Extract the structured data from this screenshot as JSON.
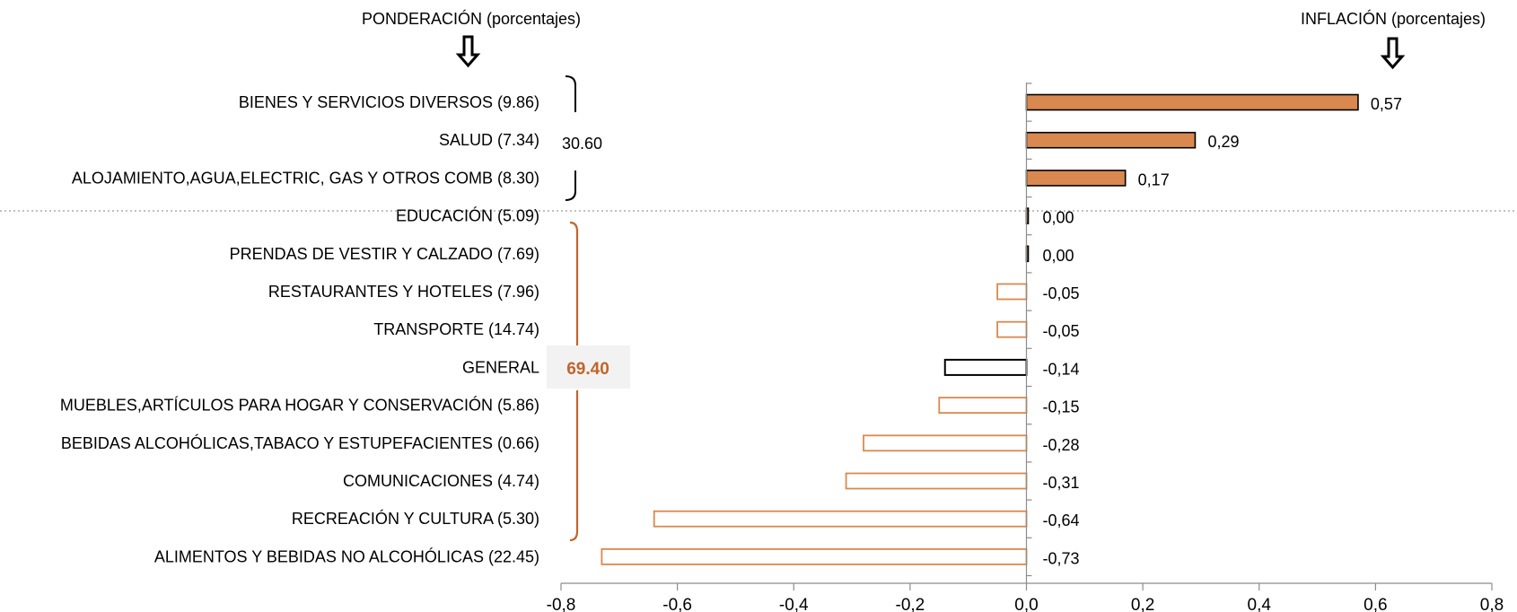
{
  "chart_data": {
    "type": "bar",
    "orientation": "horizontal",
    "header_left": "PONDERACIÓN (porcentajes)",
    "header_right": "INFLACIÓN (porcentajes)",
    "group_top_total": "30.60",
    "group_bottom_total": "69.40",
    "xlim": [
      -0.8,
      0.8
    ],
    "x_ticks": [
      "-0,8",
      "-0,6",
      "-0,4",
      "-0,2",
      "0,0",
      "0,2",
      "0,4",
      "0,6",
      "0,8"
    ],
    "colors": {
      "filled": "#d9894f",
      "outline_orange": "#d9894f",
      "general": "#000000"
    },
    "categories": [
      "BIENES Y SERVICIOS DIVERSOS (9.86)",
      "SALUD (7.34)",
      "ALOJAMIENTO,AGUA,ELECTRIC, GAS Y OTROS COMB (8.30)",
      "EDUCACIÓN (5.09)",
      "PRENDAS DE VESTIR Y CALZADO (7.69)",
      "RESTAURANTES Y HOTELES (7.96)",
      "TRANSPORTE (14.74)",
      "GENERAL",
      "MUEBLES,ARTÍCULOS PARA HOGAR Y CONSERVACIÓN (5.86)",
      "BEBIDAS ALCOHÓLICAS,TABACO Y ESTUPEFACIENTES (0.66)",
      "COMUNICACIONES (4.74)",
      "RECREACIÓN Y CULTURA (5.30)",
      "ALIMENTOS Y BEBIDAS NO ALCOHÓLICAS (22.45)"
    ],
    "values": [
      0.57,
      0.29,
      0.17,
      0.0,
      0.0,
      -0.05,
      -0.05,
      -0.14,
      -0.15,
      -0.28,
      -0.31,
      -0.64,
      -0.73
    ],
    "value_labels": [
      "0,57",
      "0,29",
      "0,17",
      "0,00",
      "0,00",
      "-0,05",
      "-0,05",
      "-0,14",
      "-0,15",
      "-0,28",
      "-0,31",
      "-0,64",
      "-0,73"
    ],
    "styles": [
      "filled",
      "filled",
      "filled",
      "filled",
      "filled",
      "outline",
      "outline",
      "general",
      "outline",
      "outline",
      "outline",
      "outline",
      "outline"
    ]
  }
}
